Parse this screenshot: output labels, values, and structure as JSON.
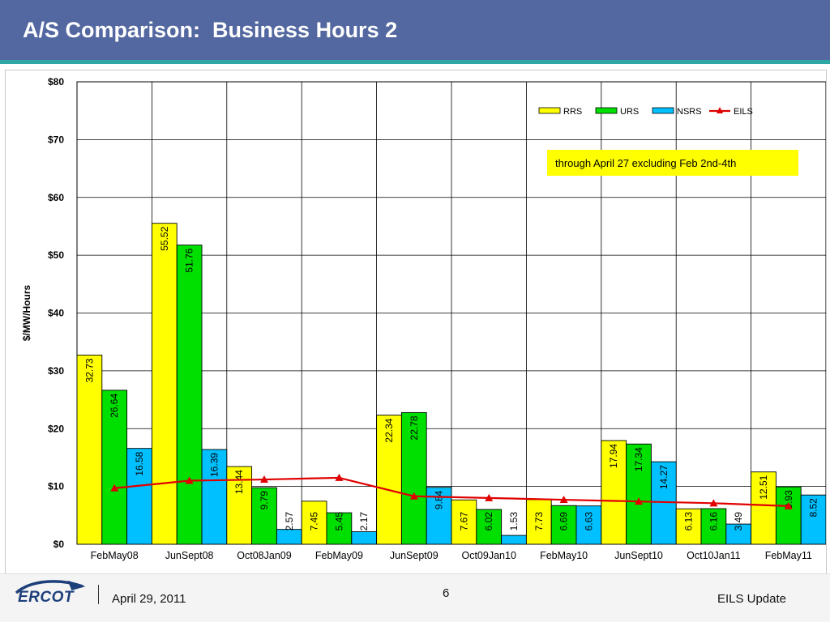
{
  "slide": {
    "title": "A/S Comparison:  Business Hours 2",
    "footer_date": "April 29, 2011",
    "page_number": "6",
    "footer_right": "EILS Update",
    "logo_text": "ERCOT"
  },
  "colors": {
    "header": "#5368a0",
    "RRS": "#ffff00",
    "URS": "#00e000",
    "NSRS": "#00c0ff",
    "EILS": "#e00000",
    "note_bg": "#ffff00"
  },
  "chart_data": {
    "type": "bar",
    "ylabel": "$/MW/Hours",
    "ylim": [
      0,
      80
    ],
    "ytick_step": 10,
    "ytick_labels": [
      "$0",
      "$10",
      "$20",
      "$30",
      "$40",
      "$50",
      "$60",
      "$70",
      "$80"
    ],
    "grid": true,
    "legend_position": "top-right",
    "annotation": "through April 27 excluding Feb 2nd-4th",
    "categories": [
      "FebMay08",
      "JunSept08",
      "Oct08Jan09",
      "FebMay09",
      "JunSept09",
      "Oct09Jan10",
      "FebMay10",
      "JunSept10",
      "Oct10Jan11",
      "FebMay11"
    ],
    "series": [
      {
        "name": "RRS",
        "type": "bar",
        "values": [
          32.73,
          55.52,
          13.44,
          7.45,
          22.34,
          7.67,
          7.73,
          17.94,
          6.13,
          12.51
        ]
      },
      {
        "name": "URS",
        "type": "bar",
        "values": [
          26.64,
          51.76,
          9.79,
          5.45,
          22.78,
          6.02,
          6.69,
          17.34,
          6.16,
          9.93
        ]
      },
      {
        "name": "NSRS",
        "type": "bar",
        "values": [
          16.58,
          16.39,
          2.57,
          2.17,
          9.84,
          1.53,
          6.63,
          14.27,
          3.49,
          8.52
        ]
      },
      {
        "name": "EILS",
        "type": "line",
        "values": [
          9.7,
          11.0,
          11.2,
          11.5,
          8.3,
          8.0,
          7.7,
          7.4,
          7.1,
          6.6
        ]
      }
    ]
  }
}
